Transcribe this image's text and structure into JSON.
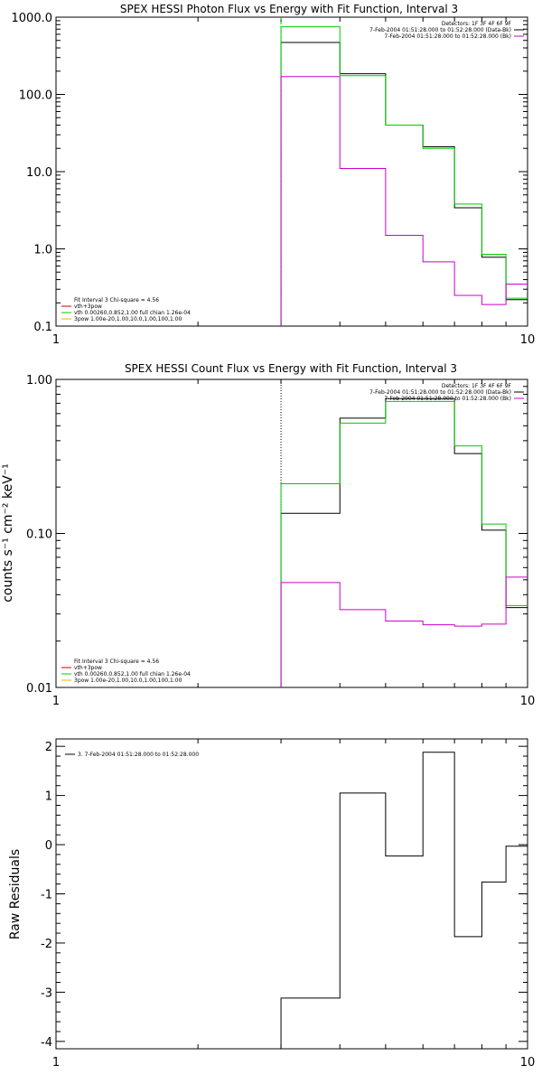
{
  "chart_data": [
    {
      "type": "line",
      "step": true,
      "title": "SPEX HESSI Photon Flux vs Energy with Fit Function, Interval 3",
      "xlabel": "",
      "ylabel": "",
      "xscale": "log",
      "yscale": "log",
      "xlim": [
        1,
        10
      ],
      "ylim": [
        0.1,
        1000
      ],
      "xticks": [
        "1",
        "10"
      ],
      "yticks": [
        "0.1",
        "1.0",
        "10.0",
        "100.0",
        "1000.0"
      ],
      "edges": [
        3,
        4,
        5,
        6,
        7,
        8,
        9,
        10
      ],
      "series": [
        {
          "name": "",
          "color": "#000000",
          "values": [
            470,
            185,
            40,
            21,
            3.4,
            0.78,
            0.22
          ]
        },
        {
          "name": "",
          "color": "#00cc00",
          "values": [
            750,
            175,
            40,
            20,
            3.8,
            0.85,
            0.23
          ]
        },
        {
          "name": "",
          "color": "#cc00cc",
          "values": [
            170,
            11,
            1.5,
            0.68,
            0.25,
            0.19,
            0.35
          ]
        }
      ],
      "vline": {
        "x": 3,
        "color": "#00cc00",
        "style": "dashed"
      },
      "legend_top": {
        "position": "top-right",
        "lines": [
          {
            "text": "Detectors: 1F 3F 4F 6F 9F",
            "color": ""
          },
          {
            "text": "7-Feb-2004 01:51:28.000 to 01:52:28.000 (Data-Bk)",
            "color": "#000000"
          },
          {
            "text": "7-Feb-2004 01:51:28.000 to 01:52:28.000 (Bk)",
            "color": "#cc00cc"
          }
        ]
      },
      "legend_bottom": {
        "position": "bottom-left",
        "lines": [
          {
            "text": "Fit Interval 3   Chi-square = 4.56",
            "color": ""
          },
          {
            "text": "vth+3pow",
            "color": "#cc0000"
          },
          {
            "text": "vth 0.00260,0.852,1.00  full chian 1.26e-04",
            "color": "#00cc00"
          },
          {
            "text": "3pow 1.00e-20,1.00,10.0,1.00,100,1.00",
            "color": "#ffaa00"
          }
        ]
      }
    },
    {
      "type": "line",
      "step": true,
      "title": "SPEX HESSI Count Flux vs Energy with Fit Function, Interval 3",
      "xlabel": "",
      "ylabel": "counts s⁻¹ cm⁻² keV⁻¹",
      "xscale": "log",
      "yscale": "log",
      "xlim": [
        1,
        10
      ],
      "ylim": [
        0.01,
        1
      ],
      "xticks": [
        "1",
        "10"
      ],
      "yticks": [
        "0.01",
        "0.10",
        "1.00"
      ],
      "edges": [
        3,
        4,
        5,
        6,
        7,
        8,
        9,
        10
      ],
      "series": [
        {
          "name": "",
          "color": "#000000",
          "values": [
            0.135,
            0.56,
            0.75,
            0.75,
            0.33,
            0.105,
            0.033
          ]
        },
        {
          "name": "",
          "color": "#00cc00",
          "values": [
            0.21,
            0.52,
            0.72,
            0.72,
            0.37,
            0.115,
            0.034
          ]
        },
        {
          "name": "",
          "color": "#cc00cc",
          "values": [
            0.048,
            0.032,
            0.027,
            0.0255,
            0.025,
            0.0258,
            0.052
          ]
        }
      ],
      "vline": {
        "x": 3,
        "color": "#000000",
        "style": "dotted"
      },
      "legend_top": {
        "position": "top-right",
        "lines": [
          {
            "text": "Detectors: 1F 3F 4F 6F 9F",
            "color": ""
          },
          {
            "text": "7-Feb-2004 01:51:28.000 to 01:52:28.000 (Data-Bk)",
            "color": "#000000"
          },
          {
            "text": "7-Feb-2004 01:51:28.000 to 01:52:28.000 (Bk)",
            "color": "#cc00cc"
          }
        ]
      },
      "legend_bottom": {
        "position": "bottom-left",
        "lines": [
          {
            "text": "Fit Interval 3   Chi-square = 4.56",
            "color": ""
          },
          {
            "text": "vth+3pow",
            "color": "#cc0000"
          },
          {
            "text": "vth 0.00260,0.852,1.00  full chian 1.26e-04",
            "color": "#00cc00"
          },
          {
            "text": "3pow 1.00e-20,1.00,10.0,1.00,100,1.00",
            "color": "#ffaa00"
          }
        ]
      }
    },
    {
      "type": "line",
      "step": true,
      "title": "",
      "xlabel": "",
      "ylabel": "Raw Residuals",
      "xscale": "log",
      "yscale": "linear",
      "xlim": [
        1,
        10
      ],
      "ylim": [
        -4.15,
        2.15
      ],
      "xticks": [
        "1",
        "10"
      ],
      "yticks": [
        "-4",
        "-3",
        "-2",
        "-1",
        "0",
        "1",
        "2"
      ],
      "edges": [
        3,
        4,
        5,
        6,
        7,
        8,
        9,
        10
      ],
      "series": [
        {
          "name": "3.  7-Feb-2004 01:51:28.000 to 01:52:28.000",
          "color": "#000000",
          "values": [
            -3.12,
            1.05,
            -0.23,
            1.88,
            -1.87,
            -0.76,
            -0.03
          ]
        }
      ],
      "legend": {
        "position": "top-left"
      }
    }
  ]
}
